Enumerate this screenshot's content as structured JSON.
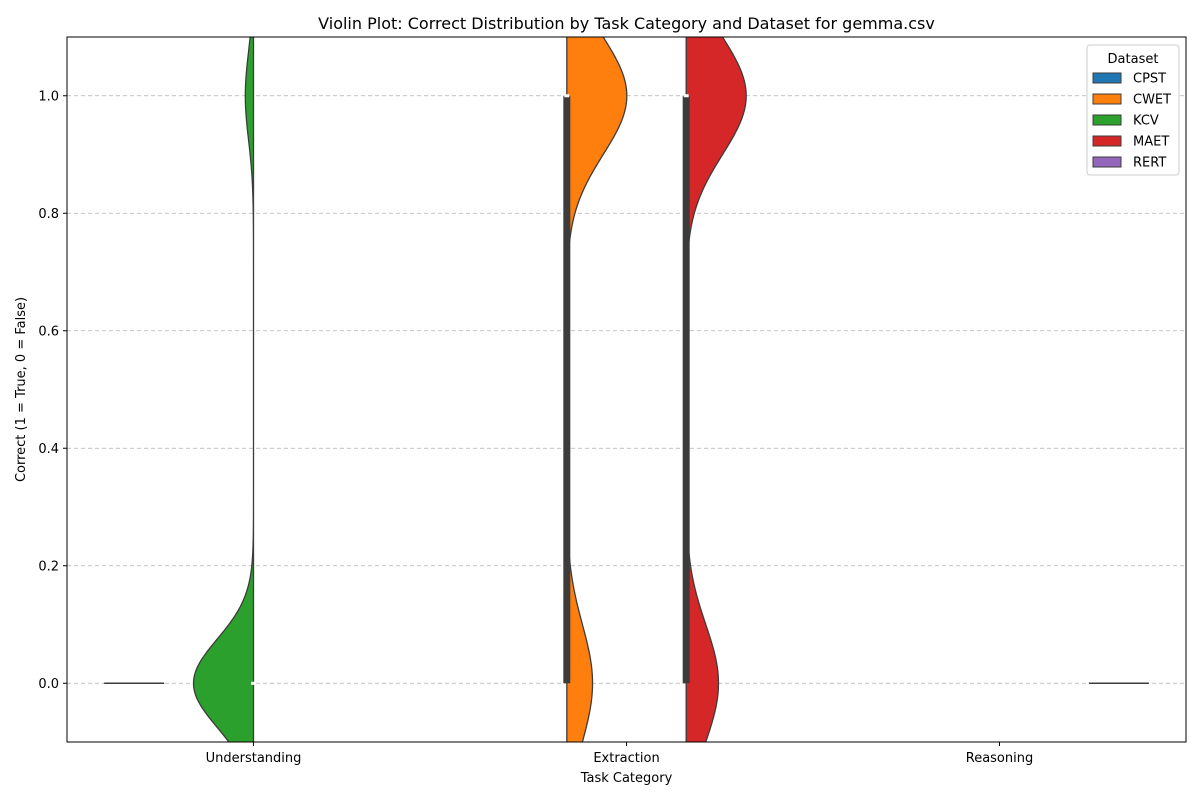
{
  "chart_data": {
    "type": "violin",
    "title": "Violin Plot: Correct Distribution by Task Category and Dataset for gemma.csv",
    "xlabel": "Task Category",
    "ylabel": "Correct (1 = True, 0 = False)",
    "categories": [
      "Understanding",
      "Extraction",
      "Reasoning"
    ],
    "ylim": [
      -0.1,
      1.1
    ],
    "yticks": [
      "0.0",
      "0.2",
      "0.4",
      "0.6",
      "0.8",
      "1.0"
    ],
    "grid": "y-dashed",
    "legend": {
      "title": "Dataset",
      "placement": "top-right",
      "entries": [
        {
          "name": "CPST",
          "color": "#1f77b4"
        },
        {
          "name": "CWET",
          "color": "#ff7f0e"
        },
        {
          "name": "KCV",
          "color": "#2ca02c"
        },
        {
          "name": "MAET",
          "color": "#d62728"
        },
        {
          "name": "RERT",
          "color": "#9467bd"
        }
      ]
    },
    "series": [
      {
        "name": "CPST",
        "category": "Understanding",
        "values_summary": "all 0",
        "true_fraction": 0.0,
        "shape": "degenerate"
      },
      {
        "name": "KCV",
        "category": "Understanding",
        "true_fraction": 0.12,
        "shape": "half-left",
        "median": 0.0
      },
      {
        "name": "CWET",
        "category": "Extraction",
        "true_fraction": 0.7,
        "shape": "half-right",
        "q1": 0.0,
        "q3": 1.0,
        "median": 1.0
      },
      {
        "name": "MAET",
        "category": "Extraction",
        "true_fraction": 0.65,
        "shape": "half-right",
        "q1": 0.0,
        "q3": 1.0,
        "median": 1.0
      },
      {
        "name": "RERT",
        "category": "Reasoning",
        "values_summary": "all 0",
        "true_fraction": 0.0,
        "shape": "degenerate"
      }
    ]
  }
}
